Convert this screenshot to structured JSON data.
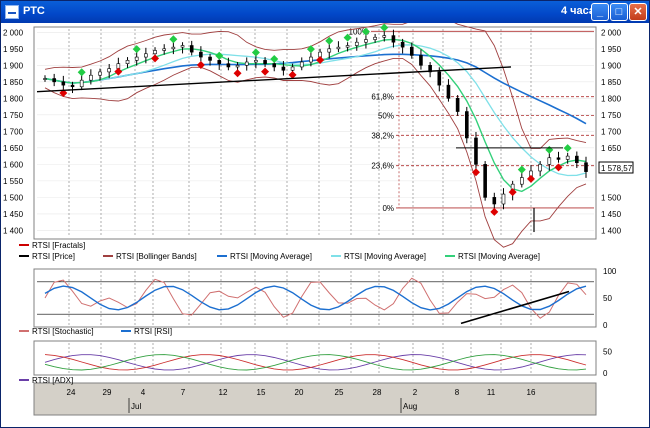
{
  "window": {
    "title": "РТС",
    "timeframe": "4 часа",
    "buttons": {
      "minimize": "_",
      "maximize": "□",
      "close": "✕"
    }
  },
  "price_panel": {
    "y_ticks": [
      "2 000",
      "1 950",
      "1 900",
      "1 850",
      "1 800",
      "1 750",
      "1 700",
      "1 650",
      "1 600",
      "1 550",
      "1 500",
      "1 450",
      "1 400"
    ],
    "right_ticks": [
      "2 000",
      "1 950",
      "1 900",
      "1 850",
      "1 800",
      "1 750",
      "1 700",
      "1 650",
      "1 600",
      "1 550",
      "1 500",
      "1 450",
      "1 400"
    ],
    "price_box": "1 578,57",
    "fib_levels": [
      {
        "label": "100%",
        "value": 2003
      },
      {
        "label": "61,8%",
        "value": 1805
      },
      {
        "label": "50%",
        "value": 1748
      },
      {
        "label": "38,2%",
        "value": 1688
      },
      {
        "label": "23,6%",
        "value": 1596
      },
      {
        "label": "0%",
        "value": 1468
      }
    ],
    "legend": [
      {
        "name": "RTSI [Fractals]",
        "color": "#cc0000"
      },
      {
        "name": "RTSI [Price]",
        "color": "#000000"
      },
      {
        "name": "RTSI [Bollinger Bands]",
        "color": "#a04040"
      },
      {
        "name": "RTSI [Moving Average]",
        "color": "#1c6fd0"
      },
      {
        "name": "RTSI [Moving Average]",
        "color": "#7fe0e8"
      },
      {
        "name": "RTSI [Moving Average]",
        "color": "#33d07a"
      }
    ]
  },
  "osc_panel": {
    "right_ticks": [
      "100",
      "50",
      "0"
    ],
    "legend": [
      {
        "name": "RTSI [Stochastic]",
        "color": "#d07070"
      },
      {
        "name": "RTSI [RSI]",
        "color": "#1c6fd0"
      }
    ]
  },
  "adx_panel": {
    "right_ticks": [
      "50",
      "0"
    ],
    "legend": [
      {
        "name": "RTSI [ADX]",
        "color": "#6a3fa8"
      }
    ]
  },
  "time_axis": {
    "days": [
      "24",
      "29",
      "4",
      "7",
      "12",
      "15",
      "20",
      "25",
      "28",
      "2",
      "8",
      "11",
      "16"
    ],
    "months": [
      "Jul",
      "Aug"
    ]
  },
  "chart_data": {
    "type": "candlestick",
    "x_unit": "trading days (Jun 24 – Aug 18)",
    "price_close": [
      1860,
      1850,
      1840,
      1835,
      1855,
      1870,
      1880,
      1890,
      1905,
      1915,
      1925,
      1935,
      1945,
      1950,
      1955,
      1960,
      1940,
      1925,
      1915,
      1905,
      1895,
      1900,
      1910,
      1915,
      1905,
      1895,
      1885,
      1895,
      1910,
      1925,
      1940,
      1950,
      1955,
      1960,
      1970,
      1978,
      1985,
      1990,
      1970,
      1955,
      1930,
      1900,
      1880,
      1840,
      1800,
      1760,
      1680,
      1600,
      1500,
      1480,
      1510,
      1540,
      1560,
      1580,
      1600,
      1620,
      1615,
      1625,
      1605,
      1578
    ],
    "y_range": [
      1380,
      2010
    ]
  }
}
